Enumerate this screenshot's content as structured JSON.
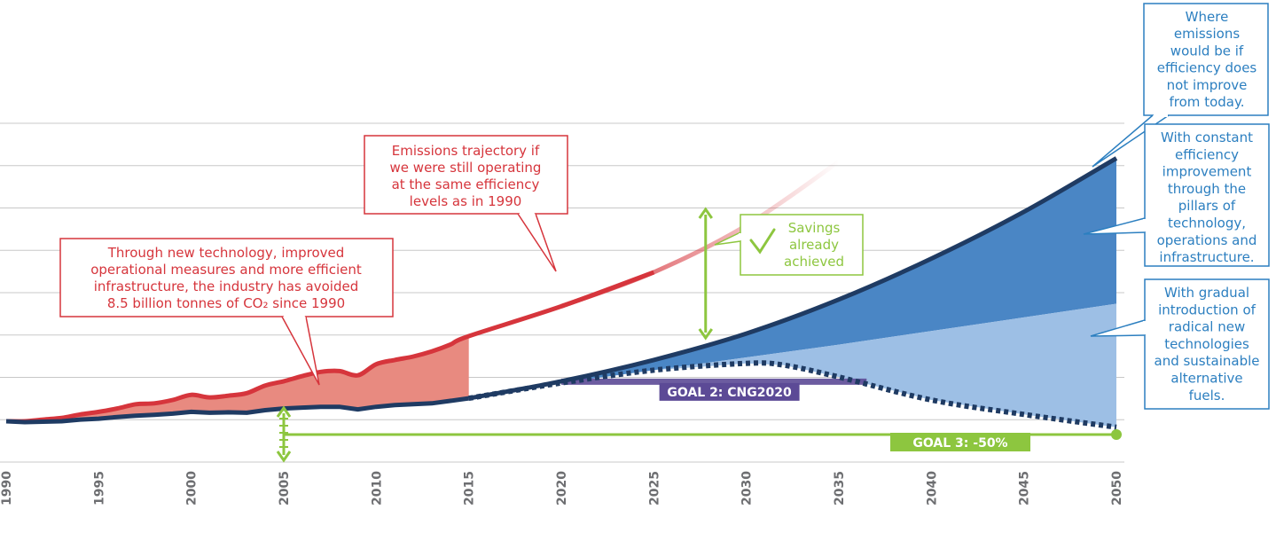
{
  "chart_data": {
    "type": "area",
    "x_axis": {
      "min": 1990,
      "max": 2050,
      "ticks": [
        "1990",
        "1995",
        "2000",
        "2005",
        "2010",
        "2015",
        "2020",
        "2025",
        "2030",
        "2035",
        "2040",
        "2045",
        "2050"
      ]
    },
    "grid": true,
    "series": [
      {
        "key": "actual",
        "color": "#1f3b63",
        "x": [
          1990,
          1991,
          1992,
          1993,
          1994,
          1995,
          1996,
          1997,
          1998,
          1999,
          2000,
          2001,
          2002,
          2003,
          2004,
          2005,
          2006,
          2007,
          2008,
          2009,
          2010,
          2011,
          2012,
          2013,
          2014,
          2015
        ],
        "y": [
          100,
          99,
          99.5,
          100,
          102,
          103,
          105,
          106.5,
          107.5,
          109,
          111,
          110,
          110.5,
          110,
          113,
          115,
          116,
          117,
          117,
          114,
          117,
          119,
          120,
          121,
          124,
          127
        ]
      },
      {
        "key": "1990-efficiency-trajectory",
        "color": "#d6353c",
        "x": [
          1990,
          1991,
          1992,
          1993,
          1994,
          1995,
          1996,
          1997,
          1998,
          1999,
          2000,
          2001,
          2002,
          2003,
          2004,
          2005,
          2006,
          2007,
          2008,
          2009,
          2010,
          2011,
          2012,
          2013,
          2014,
          2015,
          2020,
          2025,
          2030,
          2035
        ],
        "y": [
          100,
          100,
          102,
          104,
          108,
          111,
          115,
          120,
          121,
          125,
          131,
          128,
          130,
          133,
          142,
          147,
          153,
          158,
          159,
          154,
          167,
          172,
          176,
          182,
          190,
          200,
          235,
          275,
          330,
          405
        ]
      },
      {
        "key": "no-efficiency-improvement",
        "color": "#1f3b63",
        "x": [
          2015,
          2020,
          2025,
          2030,
          2035,
          2040,
          2045,
          2050
        ],
        "y": [
          127,
          147,
          172,
          203,
          243,
          291,
          346,
          409
        ]
      },
      {
        "key": "constant-efficiency-improvement",
        "color": "#6b9bd2",
        "x": [
          2015,
          2020,
          2025,
          2030,
          2035,
          2040,
          2045,
          2050
        ],
        "y": [
          127,
          145,
          160,
          175,
          190,
          206,
          222,
          238
        ]
      },
      {
        "key": "radical-technologies-sustainable-fuels",
        "color": "#1f3b63",
        "x": [
          2015,
          2020,
          2025,
          2030,
          2032,
          2035,
          2040,
          2045,
          2050
        ],
        "y": [
          127,
          145,
          160,
          168,
          166,
          152,
          125,
          108,
          93
        ]
      }
    ],
    "annotations": {
      "red_trajectory": [
        "Emissions trajectory if",
        "we were still operating",
        "at the same efficiency",
        "levels as in 1990"
      ],
      "avoided": [
        "Through new technology, improved",
        "operational measures and more efficient",
        "infrastructure, the industry has avoided",
        "8.5 billion tonnes of CO₂ since 1990"
      ],
      "savings": [
        "Savings",
        "already",
        "achieved"
      ],
      "goal2": "GOAL 2: CNG2020",
      "goal3": "GOAL 3: -50%",
      "legend_no_improvement": [
        "Where",
        "emissions",
        "would be if",
        "efficiency does",
        "not improve",
        "from today."
      ],
      "legend_constant": [
        "With constant",
        "efficiency",
        "improvement",
        "through the",
        "pillars of",
        "technology,",
        "operations and",
        "infrastructure."
      ],
      "legend_radical": [
        "With gradual",
        "introduction of",
        "radical new",
        "technologies",
        "and sustainable",
        "alternative",
        "fuels."
      ]
    },
    "colors": {
      "red_line": "#d6353c",
      "red_fill": "#e88a80",
      "navy_line": "#1f3b63",
      "blue_dark_fill": "#4a86c5",
      "blue_light_fill": "#9dbfe5",
      "green": "#8dc63f",
      "purple": "#5c4a96",
      "callout_blue": "#2c7fc0",
      "grid": "#c8c8c8",
      "tick": "#6d6e71"
    }
  }
}
